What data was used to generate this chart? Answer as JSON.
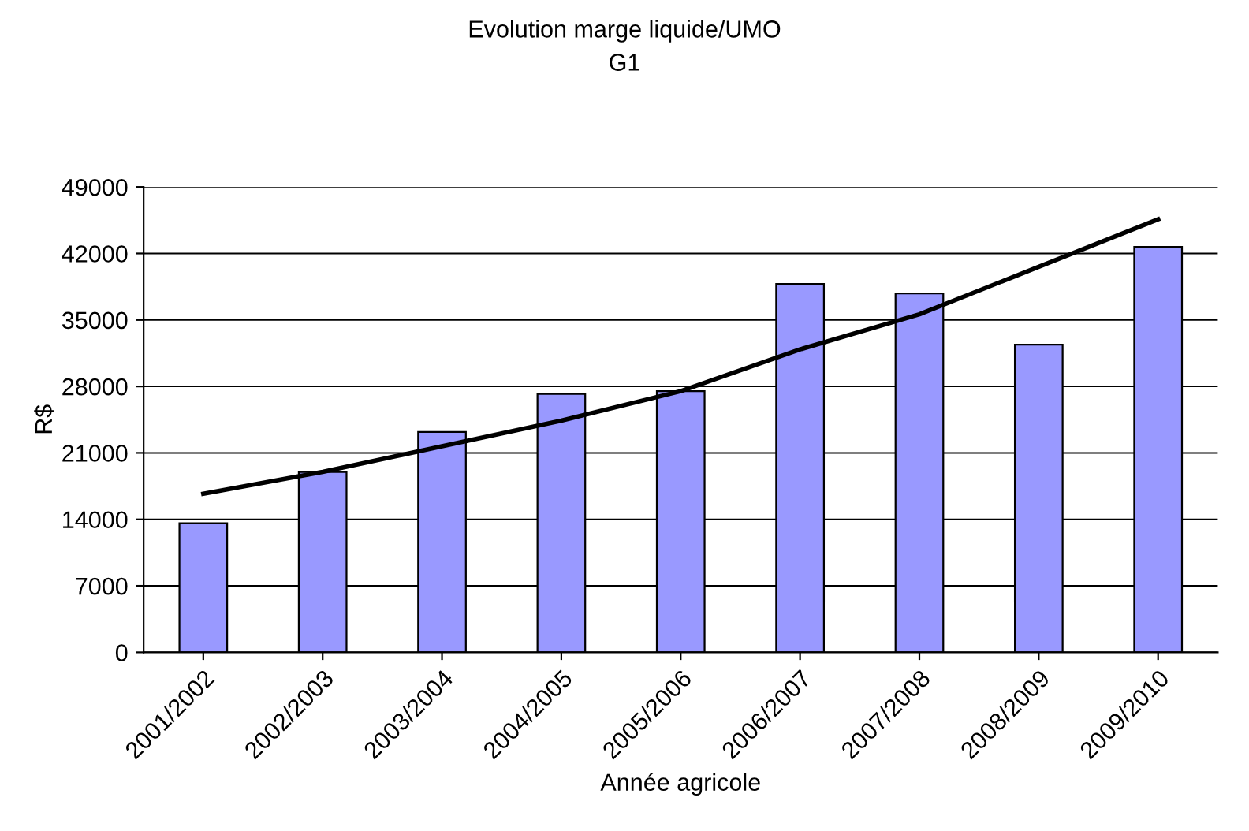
{
  "chart_data": {
    "type": "bar",
    "title": "Evolution marge liquide/UMO",
    "subtitle": "G1",
    "xlabel": "Année agricole",
    "ylabel": "R$",
    "categories": [
      "2001/2002",
      "2002/2003",
      "2003/2004",
      "2004/2005",
      "2005/2006",
      "2006/2007",
      "2007/2008",
      "2008/2009",
      "2009/2010"
    ],
    "series": [
      {
        "color": "#9999ff",
        "values": [
          13600,
          19000,
          23200,
          27200,
          27500,
          38800,
          37800,
          32400,
          42700
        ]
      },
      {
        "type": "line",
        "color": "#000000",
        "values": [
          16700,
          19000,
          21700,
          24400,
          27500,
          31900,
          35600,
          40600,
          45600
        ]
      }
    ],
    "ylim": [
      0,
      49000
    ],
    "yticks": [
      0,
      7000,
      14000,
      21000,
      28000,
      35000,
      42000,
      49000
    ],
    "grid": "y",
    "legend": false
  }
}
